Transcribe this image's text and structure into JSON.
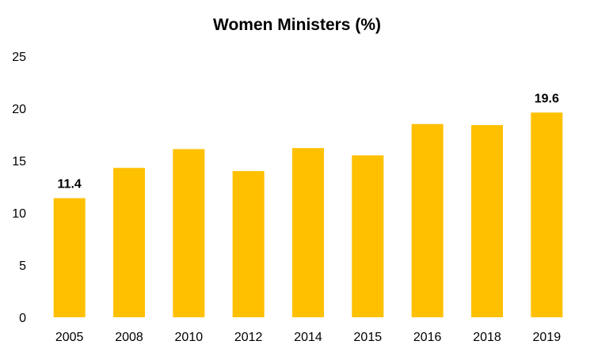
{
  "chart_data": {
    "type": "bar",
    "title": "Women Ministers (%)",
    "xlabel": "",
    "ylabel": "",
    "categories": [
      "2005",
      "2008",
      "2010",
      "2012",
      "2014",
      "2015",
      "2016",
      "2018",
      "2019"
    ],
    "values": [
      11.4,
      14.3,
      16.1,
      14.0,
      16.2,
      15.5,
      18.5,
      18.4,
      19.6
    ],
    "ylim": [
      0,
      25
    ],
    "yticks": [
      "0",
      "5",
      "10",
      "15",
      "20",
      "25"
    ],
    "data_labels": [
      {
        "category": "2005",
        "text": "11.4"
      },
      {
        "category": "2019",
        "text": "19.6"
      }
    ],
    "bar_color": "#FFC000",
    "grid": false,
    "legend": "none"
  }
}
